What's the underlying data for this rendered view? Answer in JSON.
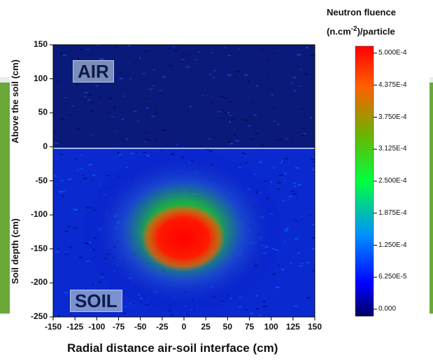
{
  "chart_data": {
    "type": "heatmap",
    "title": "",
    "xlabel": "Radial distance air-soil interface (cm)",
    "ylabel_upper": "Above the soil (cm)",
    "ylabel_lower": "Soil depth (cm)",
    "xlim": [
      -150,
      150
    ],
    "ylim": [
      -250,
      150
    ],
    "x_ticks": [
      "-150",
      "-125",
      "-100",
      "-75",
      "-50",
      "-25",
      "0",
      "25",
      "50",
      "75",
      "100",
      "125",
      "150"
    ],
    "y_ticks": [
      "150",
      "100",
      "50",
      "0",
      "-50",
      "-100",
      "-150",
      "-200",
      "-250"
    ],
    "region_labels": {
      "air": "AIR",
      "soil": "SOIL"
    },
    "interface_line_y": 0,
    "hotspot": {
      "center_x": 0,
      "center_y": -140,
      "peak_value": 0.0005
    },
    "colorbar": {
      "title_line1": "Neutron fluence",
      "title_line2_prefix": "(n.cm",
      "title_line2_sup": "-2",
      "title_line2_suffix": ")/particle",
      "ticks": [
        "5.000E-4",
        "4.375E-4",
        "3.750E-4",
        "3.125E-4",
        "2.500E-4",
        "1.875E-4",
        "1.250E-4",
        "6.250E-5",
        "0.000"
      ],
      "min": 0,
      "max": 0.0005,
      "colors": [
        "#000060",
        "#0000ff",
        "#00b0ff",
        "#00ff40",
        "#80c000",
        "#ff8000",
        "#ff0000"
      ]
    }
  }
}
